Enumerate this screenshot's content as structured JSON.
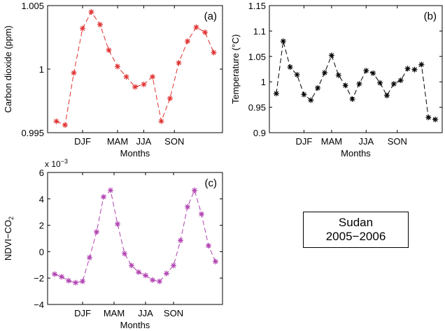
{
  "annotation": {
    "line1": "Sudan",
    "line2": "2005−2006"
  },
  "chart_data": [
    {
      "type": "line",
      "panel": "(a)",
      "color": "#e03030",
      "xlabel": "Months",
      "ylabel": "Carbon dioxide (ppm)",
      "ylim": [
        0.995,
        1.005
      ],
      "yticks": [
        "0.995",
        "1",
        "1.005"
      ],
      "ytick_values": [
        0.995,
        1,
        1.005
      ],
      "xlim": [
        0,
        19
      ],
      "xticks": [
        {
          "x": 4,
          "label": "DJF"
        },
        {
          "x": 8,
          "label": "MAM"
        },
        {
          "x": 11,
          "label": "JJA"
        },
        {
          "x": 14.5,
          "label": "SON"
        }
      ],
      "x": [
        1,
        2,
        3,
        4,
        5,
        6,
        7,
        8,
        9,
        10,
        11,
        12,
        13,
        14,
        15,
        16,
        17,
        18,
        19
      ],
      "values": [
        0.9959,
        0.9956,
        0.9997,
        1.0032,
        1.0045,
        1.0035,
        1.0015,
        1.0002,
        0.9994,
        0.9986,
        0.9988,
        0.9994,
        0.9959,
        0.9977,
        1.0005,
        1.0022,
        1.0033,
        1.0029,
        1.0013
      ]
    },
    {
      "type": "line",
      "panel": "(b)",
      "color": "#000000",
      "xlabel": "Months",
      "ylabel": "Temperature (°C)",
      "ylim": [
        0.9,
        1.15
      ],
      "yticks": [
        "0.9",
        "0.95",
        "1",
        "1.05",
        "1.1",
        "1.15"
      ],
      "ytick_values": [
        0.9,
        0.95,
        1,
        1.05,
        1.1,
        1.15
      ],
      "xlim": [
        0,
        24
      ],
      "xticks": [
        {
          "x": 5,
          "label": "DJF"
        },
        {
          "x": 9,
          "label": "MAM"
        },
        {
          "x": 14,
          "label": "JJA"
        },
        {
          "x": 18.5,
          "label": "SON"
        }
      ],
      "x": [
        1,
        2,
        3,
        4,
        5,
        6,
        7,
        8,
        9,
        10,
        11,
        12,
        13,
        14,
        15,
        16,
        17,
        18,
        19,
        20,
        21,
        22,
        23,
        24
      ],
      "values": [
        0.977,
        1.08,
        1.029,
        1.014,
        0.975,
        0.964,
        0.988,
        1.018,
        1.052,
        1.013,
        0.993,
        0.966,
        0.996,
        1.022,
        1.017,
        0.998,
        0.973,
        0.996,
        1.003,
        1.026,
        1.024,
        1.034,
        0.93,
        0.926
      ]
    },
    {
      "type": "line",
      "panel": "(c)",
      "color": "#b040b0",
      "xlabel": "Months",
      "ylabel": "NDVI−CO",
      "ylabel_subscript": "2",
      "ylim": [
        -4,
        6
      ],
      "yticks": [
        "−4",
        "−2",
        "0",
        "2",
        "4",
        "6"
      ],
      "ytick_values": [
        -4,
        -2,
        0,
        2,
        4,
        6
      ],
      "multiplier": "x 10",
      "multiplier_exp": "−3",
      "xlim": [
        0,
        24
      ],
      "xticks": [
        {
          "x": 5,
          "label": "DJF"
        },
        {
          "x": 9.5,
          "label": "MAM"
        },
        {
          "x": 14,
          "label": "JJA"
        },
        {
          "x": 18,
          "label": "SON"
        }
      ],
      "x": [
        1,
        2,
        3,
        4,
        5,
        6,
        7,
        8,
        9,
        10,
        11,
        12,
        13,
        14,
        15,
        16,
        17,
        18,
        19,
        20,
        21,
        22,
        23,
        24
      ],
      "values": [
        -1.7,
        -1.9,
        -2.2,
        -2.35,
        -2.25,
        -0.45,
        1.5,
        4.15,
        4.65,
        2.1,
        -0.15,
        -1.05,
        -1.55,
        -1.8,
        -2.15,
        -2.25,
        -1.65,
        -1.05,
        0.85,
        3.4,
        4.65,
        2.85,
        0.45,
        -0.75
      ]
    }
  ]
}
